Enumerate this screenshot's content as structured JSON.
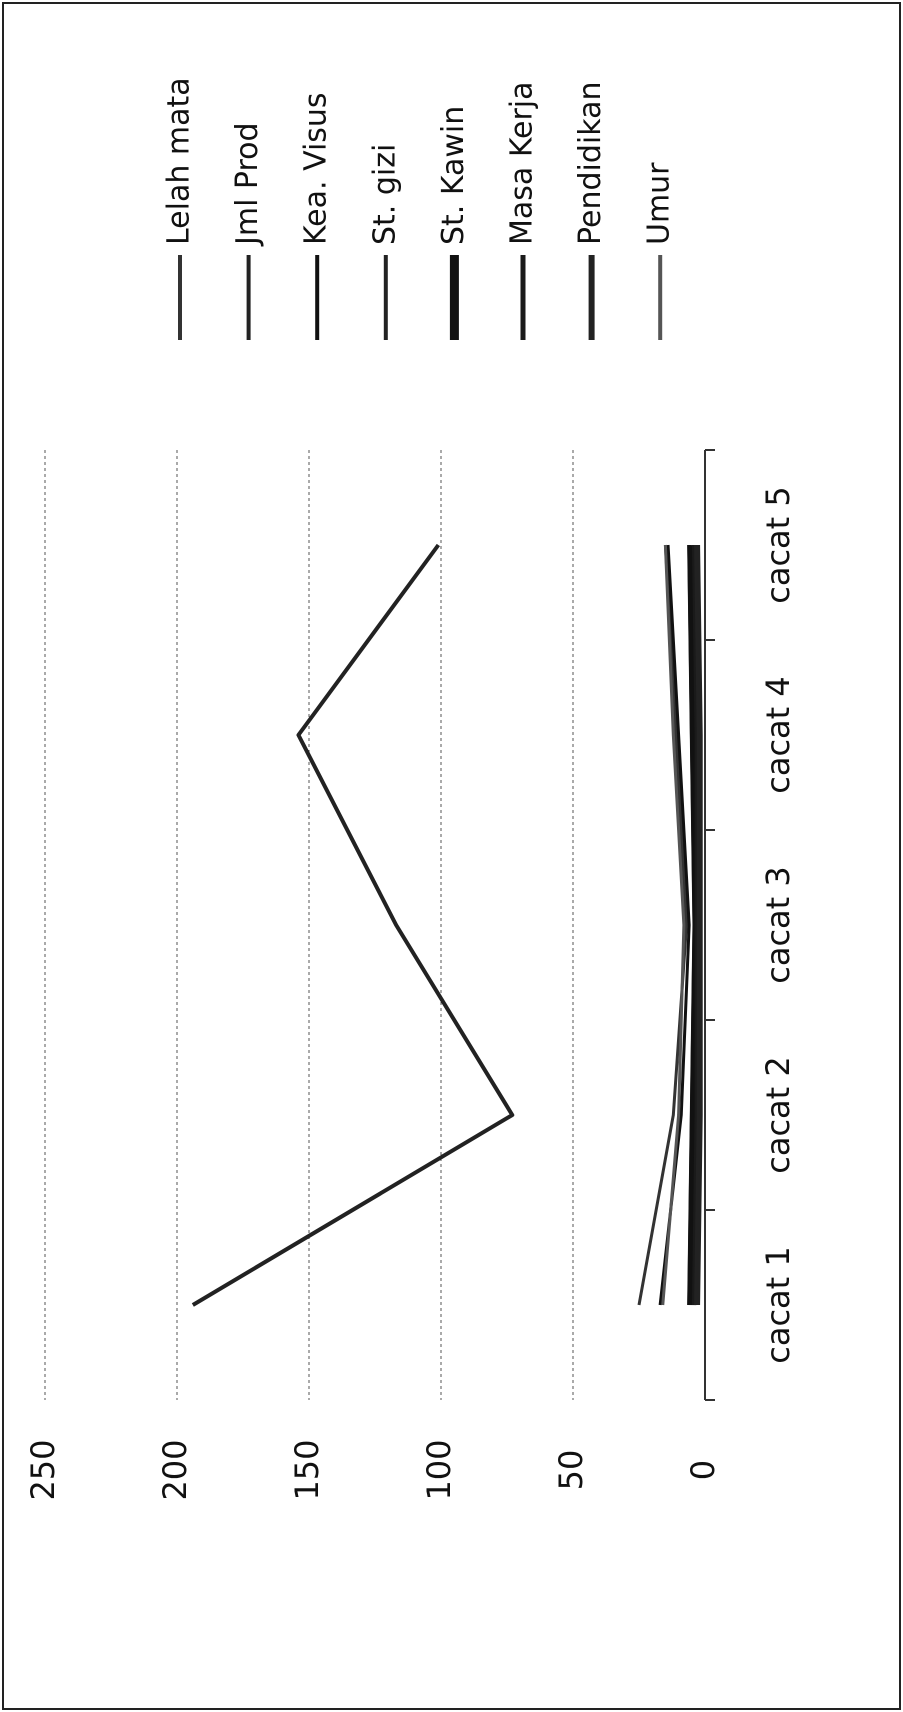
{
  "chart_data": {
    "type": "line",
    "orientation": "rotated",
    "categories": [
      "cacat 1",
      "cacat 2",
      "cacat 3",
      "cacat 4",
      "cacat 5"
    ],
    "series": [
      {
        "name": "Lelah mata",
        "color": "#333333",
        "values": [
          25,
          12,
          7,
          11,
          15
        ]
      },
      {
        "name": "Jml  Prod",
        "color": "#222222",
        "values": [
          194,
          73,
          117,
          154,
          101
        ]
      },
      {
        "name": "Kea. Visus",
        "color": "#111111",
        "values": [
          17,
          9,
          6,
          10,
          14
        ]
      },
      {
        "name": "St. gizi",
        "color": "#222222",
        "values": [
          6,
          5,
          4,
          5,
          6
        ]
      },
      {
        "name": "St. Kawin",
        "color": "#111111",
        "values": [
          5,
          4,
          3,
          4,
          5
        ]
      },
      {
        "name": "Masa Kerja",
        "color": "#1a1a1a",
        "values": [
          4,
          3,
          3,
          3,
          4
        ]
      },
      {
        "name": "Pendidikan",
        "color": "#222222",
        "values": [
          3,
          2,
          2,
          2,
          3
        ]
      },
      {
        "name": "Umur",
        "color": "#555555",
        "values": [
          16,
          10,
          8,
          12,
          15
        ]
      }
    ],
    "ylim": [
      0,
      250
    ],
    "yticks": [
      0,
      50,
      100,
      150,
      200,
      250
    ],
    "grid": true
  }
}
